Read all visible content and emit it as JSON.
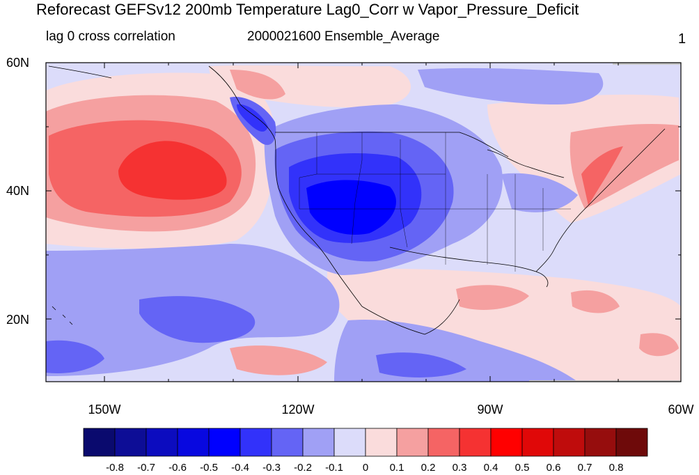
{
  "title": "Reforecast GEFSv12 200mb Temperature Lag0_Corr w Vapor_Pressure_Deficit",
  "subtitle_left": "lag 0 cross correlation",
  "subtitle_center": "2000021600 Ensemble_Average",
  "subtitle_right": "1",
  "lat_labels": [
    "60N",
    "40N",
    "20N"
  ],
  "lon_labels": [
    "150W",
    "120W",
    "90W",
    "60W"
  ],
  "colorbar": {
    "labels": [
      "-0.8",
      "-0.7",
      "-0.6",
      "-0.5",
      "-0.4",
      "-0.3",
      "-0.2",
      "-0.1",
      "0",
      "0.1",
      "0.2",
      "0.3",
      "0.4",
      "0.5",
      "0.6",
      "0.7",
      "0.8"
    ],
    "colors": [
      "#0a0a6e",
      "#0d0d96",
      "#0c0cbf",
      "#0808e0",
      "#0000ff",
      "#3232fa",
      "#6464f5",
      "#a0a0f5",
      "#dcdcfa",
      "#fadcdc",
      "#f5a0a0",
      "#f56464",
      "#f53232",
      "#ff0000",
      "#e00808",
      "#bf0c0c",
      "#960d0d",
      "#6e0a0a"
    ]
  },
  "map_colors": {
    "ocean_base": "#dcdcfa",
    "pos_weak": "#fadcdc",
    "pos_mid": "#f5a0a0",
    "pos_strong": "#f56464",
    "pos_core": "#f53232",
    "neg_weak": "#a0a0f5",
    "neg_mid": "#6464f5",
    "neg_strong": "#3232fa",
    "neg_core": "#0000ff",
    "land_mask": "#c8c8c8"
  }
}
